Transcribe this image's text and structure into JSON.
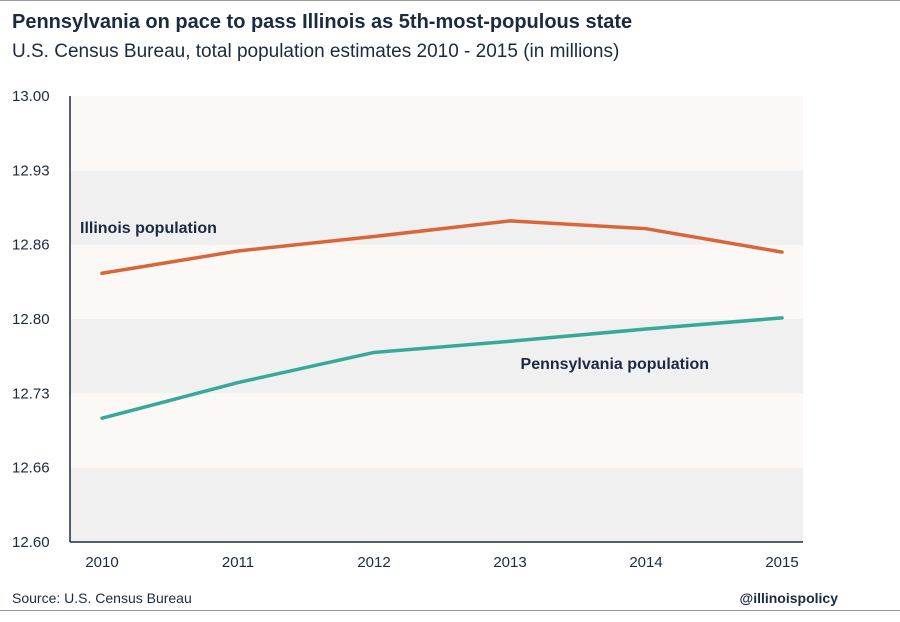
{
  "header": {
    "title": "Pennsylvania on pace to pass Illinois as 5th-most-populous state",
    "subtitle": "U.S. Census Bureau, total population estimates 2010 - 2015 (in millions)"
  },
  "footer": {
    "source": "Source: U.S. Census Bureau",
    "handle": "@illinoispolicy"
  },
  "chart_data": {
    "type": "line",
    "x": [
      2010,
      2011,
      2012,
      2013,
      2014,
      2015
    ],
    "xticks": [
      "2010",
      "2011",
      "2012",
      "2013",
      "2014",
      "2015"
    ],
    "yticks": [
      "12.60",
      "12.66",
      "12.73",
      "12.80",
      "12.86",
      "12.93",
      "13.00"
    ],
    "ylim": [
      12.6,
      13.0
    ],
    "grid": "alternating horizontal bands",
    "legend": "inline labels",
    "series": [
      {
        "name": "Illinois population",
        "color": "#d9663b",
        "values": [
          12.841,
          12.861,
          12.874,
          12.888,
          12.881,
          12.86
        ]
      },
      {
        "name": "Pennsylvania population",
        "color": "#36a89c",
        "values": [
          12.711,
          12.743,
          12.77,
          12.78,
          12.791,
          12.801
        ]
      }
    ]
  }
}
